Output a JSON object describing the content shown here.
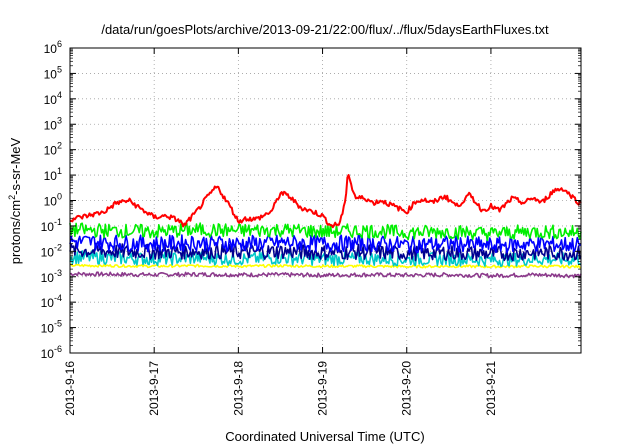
{
  "chart_data": {
    "type": "line",
    "title": "/data/run/goesPlots/archive/2013-09-21/22:00/flux/../flux/5daysEarthFluxes.txt",
    "xlabel": "Coordinated Universal Time (UTC)",
    "ylabel": {
      "base": "protons/cm",
      "sup": "2",
      "rest": "-s-sr-MeV"
    },
    "x_ticks": [
      "2013-9-16",
      "2013-9-17",
      "2013-9-18",
      "2013-9-19",
      "2013-9-20",
      "2013-9-21"
    ],
    "xlim": [
      0,
      6.07
    ],
    "ylim_exponent": [
      -6,
      6
    ],
    "y_scale": "log",
    "y_tick_base": "10",
    "y_tick_exponents": [
      "-6",
      "-5",
      "-4",
      "-3",
      "-2",
      "-1",
      "0",
      "1",
      "2",
      "3",
      "4",
      "5",
      "6"
    ],
    "grid": true,
    "series_colors": {
      "red": "#ff0000",
      "green": "#00ee00",
      "blue": "#0000ff",
      "navy": "#000090",
      "cyan": "#00c8c8",
      "yellow": "#ffff00",
      "purple": "#8b3a8b"
    },
    "series": [
      {
        "color": "#ff0000",
        "x": [
          0.0,
          0.2,
          0.4,
          0.55,
          0.7,
          0.85,
          1.0,
          1.15,
          1.3,
          1.35,
          1.5,
          1.6,
          1.7,
          1.75,
          1.9,
          2.0,
          2.1,
          2.2,
          2.3,
          2.4,
          2.5,
          2.6,
          2.75,
          2.9,
          3.0,
          3.1,
          3.2,
          3.27,
          3.3,
          3.35,
          3.4,
          3.5,
          3.6,
          3.7,
          3.8,
          3.9,
          4.0,
          4.1,
          4.2,
          4.3,
          4.45,
          4.6,
          4.75,
          4.9,
          5.0,
          5.1,
          5.25,
          5.4,
          5.5,
          5.6,
          5.75,
          5.85,
          5.95,
          6.07
        ],
        "y": [
          0.18,
          0.25,
          0.35,
          0.8,
          1.0,
          0.45,
          0.22,
          0.25,
          0.16,
          0.1,
          0.35,
          1.0,
          2.5,
          3.5,
          0.6,
          0.15,
          0.2,
          0.18,
          0.25,
          0.4,
          2.0,
          1.5,
          0.5,
          0.35,
          0.25,
          0.1,
          0.12,
          0.8,
          15,
          3.0,
          1.2,
          1.3,
          0.8,
          1.0,
          0.7,
          0.5,
          0.35,
          0.9,
          1.1,
          0.8,
          1.5,
          0.6,
          1.7,
          0.4,
          0.6,
          0.4,
          1.2,
          0.8,
          1.3,
          0.8,
          2.5,
          3.0,
          1.6,
          0.7
        ]
      },
      {
        "color": "#00ee00",
        "x": [
          0.0,
          0.5,
          1.0,
          1.5,
          2.0,
          2.5,
          3.0,
          3.5,
          4.0,
          4.5,
          5.0,
          5.5,
          6.07
        ],
        "y": [
          0.07,
          0.065,
          0.06,
          0.07,
          0.065,
          0.07,
          0.06,
          0.065,
          0.055,
          0.06,
          0.05,
          0.06,
          0.055
        ]
      },
      {
        "color": "#0000ff",
        "x": [
          0.0,
          0.5,
          1.0,
          1.5,
          2.0,
          2.5,
          3.0,
          3.5,
          4.0,
          4.5,
          5.0,
          5.5,
          6.07
        ],
        "y": [
          0.025,
          0.022,
          0.02,
          0.022,
          0.02,
          0.022,
          0.02,
          0.021,
          0.018,
          0.02,
          0.017,
          0.02,
          0.018
        ]
      },
      {
        "color": "#000090",
        "x": [
          0.0,
          0.5,
          1.0,
          1.5,
          2.0,
          2.5,
          3.0,
          3.5,
          4.0,
          4.5,
          5.0,
          5.5,
          6.07
        ],
        "y": [
          0.011,
          0.01,
          0.0095,
          0.01,
          0.0095,
          0.01,
          0.009,
          0.0095,
          0.0085,
          0.009,
          0.008,
          0.009,
          0.0085
        ]
      },
      {
        "color": "#00c8c8",
        "x": [
          0.0,
          0.5,
          1.0,
          1.5,
          2.0,
          2.5,
          3.0,
          3.5,
          4.0,
          4.5,
          5.0,
          5.5,
          6.07
        ],
        "y": [
          0.006,
          0.0055,
          0.005,
          0.0055,
          0.005,
          0.0055,
          0.005,
          0.0052,
          0.0048,
          0.005,
          0.0046,
          0.005,
          0.0048
        ]
      },
      {
        "color": "#ffff00",
        "x": [
          0.0,
          0.5,
          1.0,
          1.5,
          2.0,
          2.5,
          3.0,
          3.5,
          4.0,
          4.5,
          5.0,
          5.5,
          6.07
        ],
        "y": [
          0.0028,
          0.0027,
          0.0026,
          0.0027,
          0.0026,
          0.0027,
          0.0026,
          0.0026,
          0.0025,
          0.0026,
          0.0025,
          0.0026,
          0.0025
        ]
      },
      {
        "color": "#8b3a8b",
        "x": [
          0.0,
          0.5,
          1.0,
          1.5,
          2.0,
          2.5,
          3.0,
          3.5,
          4.0,
          4.5,
          5.0,
          5.5,
          6.07
        ],
        "y": [
          0.0013,
          0.00125,
          0.0012,
          0.00125,
          0.0012,
          0.0012,
          0.00115,
          0.0012,
          0.00115,
          0.0012,
          0.0011,
          0.0012,
          0.0011
        ]
      }
    ]
  }
}
